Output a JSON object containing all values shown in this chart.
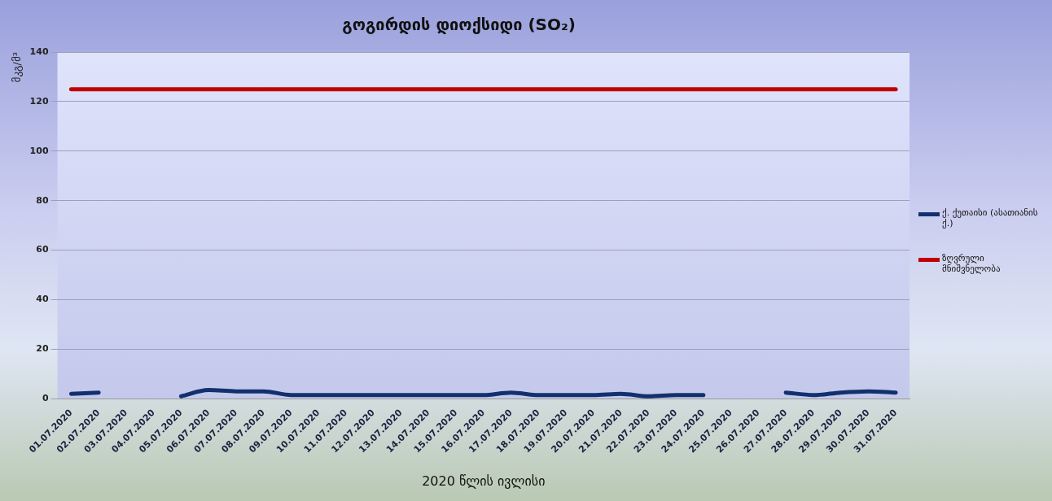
{
  "chart_data": {
    "type": "line",
    "title": "გოგირდის დიოქსიდი (SO₂)",
    "xlabel": "2020 წლის ივლისი",
    "ylabel": "მკგ/მ³",
    "categories": [
      "01.07.2020",
      "02.07.2020",
      "03.07.2020",
      "04.07.2020",
      "05.07.2020",
      "06.07.2020",
      "07.07.2020",
      "08.07.2020",
      "09.07.2020",
      "10.07.2020",
      "11.07.2020",
      "12.07.2020",
      "13.07.2020",
      "14.07.2020",
      "15.07.2020",
      "16.07.2020",
      "17.07.2020",
      "18.07.2020",
      "19.07.2020",
      "20.07.2020",
      "21.07.2020",
      "22.07.2020",
      "23.07.2020",
      "24.07.2020",
      "25.07.2020",
      "26.07.2020",
      "27.07.2020",
      "28.07.2020",
      "29.07.2020",
      "30.07.2020",
      "31.07.2020"
    ],
    "series": [
      {
        "name": "ქ. ქუთაისი (ასათიანის ქ.)",
        "color": "#13306e",
        "values": [
          2,
          2.5,
          null,
          null,
          1,
          3.5,
          3,
          3,
          1.5,
          1.5,
          1.5,
          1.5,
          1.5,
          1.5,
          1.5,
          1.5,
          2.5,
          1.5,
          1.5,
          1.5,
          2,
          1,
          1.5,
          1.5,
          null,
          null,
          2.5,
          1.5,
          2.5,
          3,
          2.5
        ]
      },
      {
        "name": "ზღვრული მნიშვნელობა",
        "color": "#c00000",
        "values": [
          125,
          125,
          125,
          125,
          125,
          125,
          125,
          125,
          125,
          125,
          125,
          125,
          125,
          125,
          125,
          125,
          125,
          125,
          125,
          125,
          125,
          125,
          125,
          125,
          125,
          125,
          125,
          125,
          125,
          125,
          125
        ]
      }
    ],
    "ylim": [
      0,
      140
    ],
    "yticks": [
      0,
      20,
      40,
      60,
      80,
      100,
      120,
      140
    ],
    "grid": "y",
    "legend": "right",
    "marker": "none",
    "line_style": "solid"
  }
}
